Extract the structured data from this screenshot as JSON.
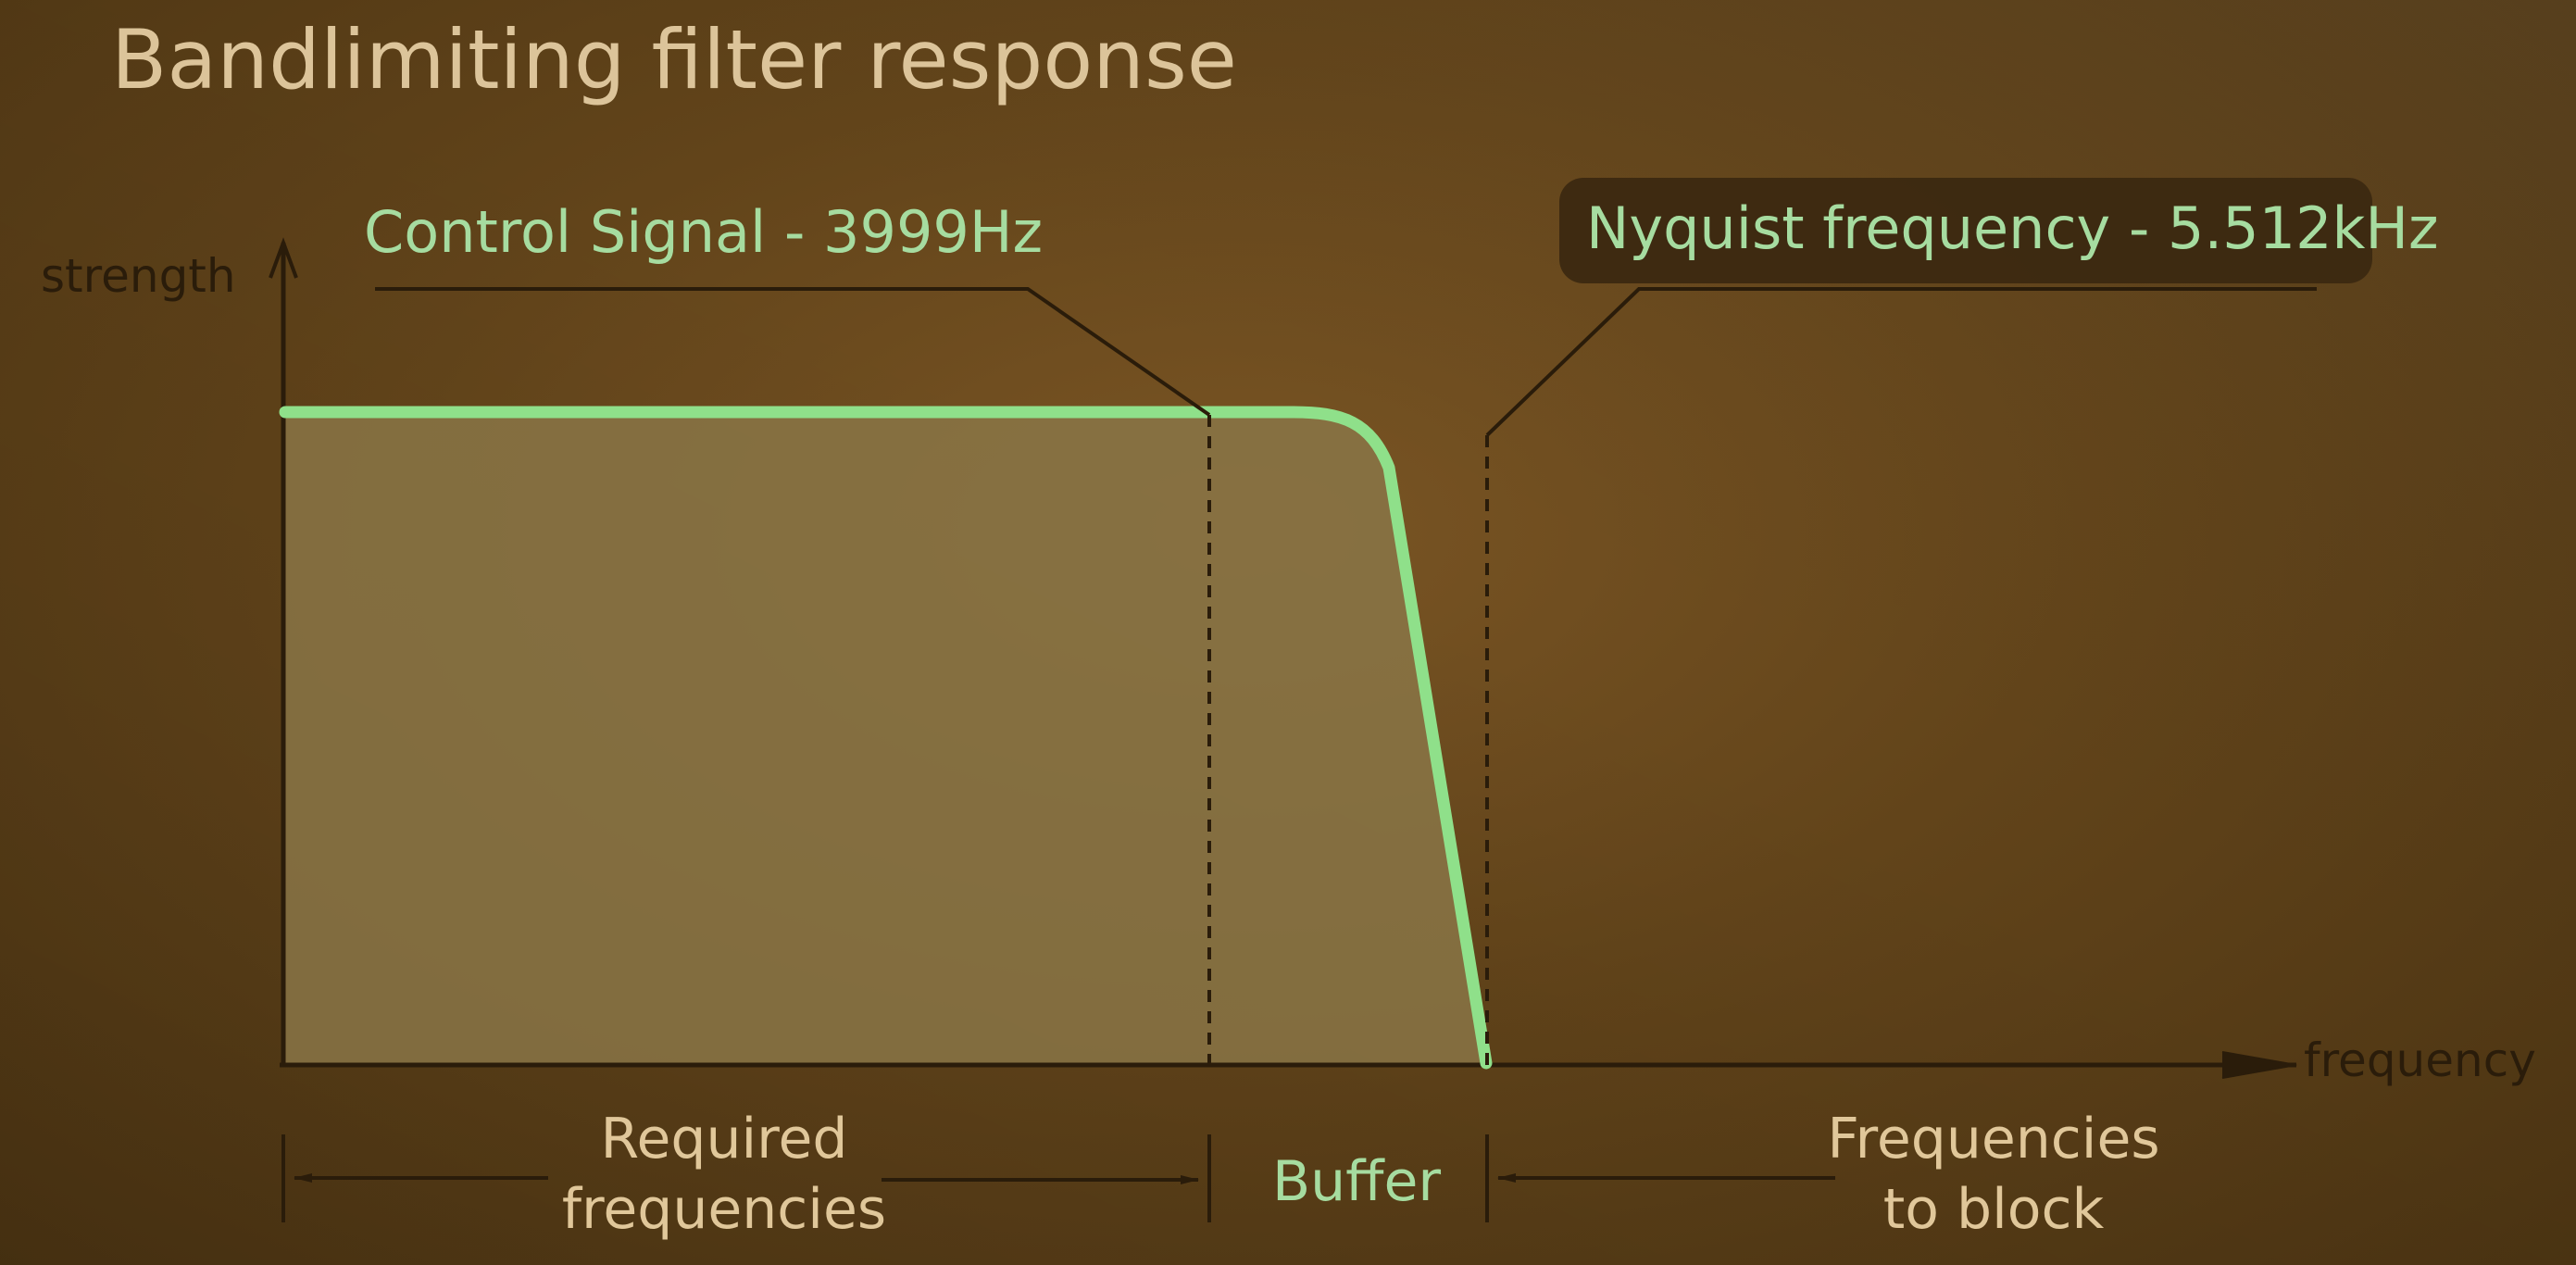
{
  "title": "Bandlimiting filter response",
  "axes": {
    "y_label": "strength",
    "x_label": "frequency"
  },
  "annotations": {
    "control_signal": "Control Signal - 3999Hz",
    "nyquist": "Nyquist frequency - 5.512kHz"
  },
  "regions": {
    "required_line1": "Required",
    "required_line2": "frequencies",
    "buffer": "Buffer",
    "block_line1": "Frequencies",
    "block_line2": "to block"
  },
  "colors": {
    "background": "#62441a",
    "curve": "#8fe08a",
    "area_fill": "#8a7646",
    "axis": "#2a1c0a",
    "title_text": "#dcc49a",
    "callout_text": "#a6dca0"
  }
}
